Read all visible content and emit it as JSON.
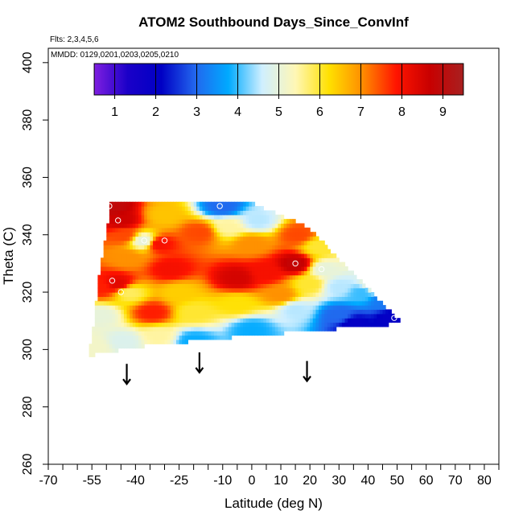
{
  "chart_data": {
    "type": "heatmap",
    "title": "ATOM2 Southbound Days_Since_ConvInf",
    "notes": [
      "Flts: 2,3,4,5,6",
      "MMDD: 0129,0201,0203,0205,0210"
    ],
    "xlabel": "Latitude (deg N)",
    "ylabel": "Theta (C)",
    "xlim": [
      -70,
      85
    ],
    "ylim": [
      260,
      405
    ],
    "xticks": [
      -70,
      -65,
      -60,
      -55,
      -50,
      -45,
      -40,
      -35,
      -30,
      -25,
      -20,
      -15,
      -10,
      -5,
      0,
      5,
      10,
      15,
      20,
      25,
      30,
      35,
      40,
      45,
      50,
      55,
      60,
      65,
      70,
      75,
      80,
      85
    ],
    "xtick_labels": [
      "-70",
      "",
      "",
      "-55",
      "",
      "",
      "-40",
      "",
      "",
      "-25",
      "",
      "",
      "-10",
      "",
      "0",
      "",
      "10",
      "",
      "20",
      "",
      "30",
      "",
      "40",
      "",
      "50",
      "",
      "60",
      "",
      "70",
      "",
      "80",
      ""
    ],
    "yticks": [
      260,
      280,
      300,
      320,
      340,
      360,
      380,
      400
    ],
    "ytick_labels": [
      "260",
      "280",
      "300",
      "320",
      "340",
      "360",
      "380",
      "400"
    ],
    "grid": false,
    "colorbar": {
      "range": [
        0.5,
        9.5
      ],
      "ticks": [
        1,
        2,
        3,
        4,
        5,
        6,
        7,
        8,
        9
      ],
      "tick_labels": [
        "1",
        "2",
        "3",
        "4",
        "5",
        "6",
        "7",
        "8",
        "9"
      ],
      "colors": [
        "#7f1fe0",
        "#1a00c8",
        "#0000c4",
        "#2266ee",
        "#00aaff",
        "#cfefff",
        "#fff7b5",
        "#ffe000",
        "#ff8c00",
        "#ff1400",
        "#c80000",
        "#a82020"
      ],
      "placement": "top-inside"
    },
    "value_range": [
      1,
      9.5
    ],
    "z_nodes": [
      {
        "lat": -48,
        "theta": 350,
        "value": 8.9
      },
      {
        "lat": -45,
        "theta": 345,
        "value": 8.6
      },
      {
        "lat": -44,
        "theta": 340,
        "value": 7.5
      },
      {
        "lat": -43,
        "theta": 332,
        "value": 7.0
      },
      {
        "lat": -46,
        "theta": 323,
        "value": 8.3
      },
      {
        "lat": -52,
        "theta": 322,
        "value": 7.8
      },
      {
        "lat": -52,
        "theta": 312,
        "value": 5.0
      },
      {
        "lat": -54,
        "theta": 301,
        "value": 5.2
      },
      {
        "lat": -44,
        "theta": 303,
        "value": 4.8
      },
      {
        "lat": -42,
        "theta": 320,
        "value": 5.8
      },
      {
        "lat": -37,
        "theta": 338,
        "value": 5.0
      },
      {
        "lat": -32,
        "theta": 337,
        "value": 8.0
      },
      {
        "lat": -30,
        "theta": 347,
        "value": 6.5
      },
      {
        "lat": -28,
        "theta": 328,
        "value": 8.0
      },
      {
        "lat": -25,
        "theta": 320,
        "value": 6.4
      },
      {
        "lat": -34,
        "theta": 313,
        "value": 7.8
      },
      {
        "lat": -32,
        "theta": 305,
        "value": 5.5
      },
      {
        "lat": -20,
        "theta": 313,
        "value": 6.0
      },
      {
        "lat": -20,
        "theta": 303,
        "value": 3.8
      },
      {
        "lat": -18,
        "theta": 341,
        "value": 7.5
      },
      {
        "lat": -10,
        "theta": 350,
        "value": 3.0
      },
      {
        "lat": -8,
        "theta": 343,
        "value": 5.5
      },
      {
        "lat": 0,
        "theta": 337,
        "value": 7.0
      },
      {
        "lat": 2,
        "theta": 345,
        "value": 4.5
      },
      {
        "lat": -5,
        "theta": 325,
        "value": 8.5
      },
      {
        "lat": -5,
        "theta": 316,
        "value": 6.2
      },
      {
        "lat": 0,
        "theta": 307,
        "value": 3.8
      },
      {
        "lat": 5,
        "theta": 327,
        "value": 8.0
      },
      {
        "lat": 15,
        "theta": 330,
        "value": 8.8
      },
      {
        "lat": 16,
        "theta": 340,
        "value": 7.5
      },
      {
        "lat": 20,
        "theta": 323,
        "value": 6.0
      },
      {
        "lat": 10,
        "theta": 319,
        "value": 7.0
      },
      {
        "lat": 23,
        "theta": 336,
        "value": 6.0
      },
      {
        "lat": 25,
        "theta": 328,
        "value": 5.0
      },
      {
        "lat": 30,
        "theta": 322,
        "value": 4.5
      },
      {
        "lat": 15,
        "theta": 314,
        "value": 4.5
      },
      {
        "lat": 30,
        "theta": 312,
        "value": 3.0
      },
      {
        "lat": 38,
        "theta": 320,
        "value": 4.0
      },
      {
        "lat": 45,
        "theta": 317,
        "value": 3.2
      },
      {
        "lat": 48,
        "theta": 311,
        "value": 2.0
      },
      {
        "lat": 35,
        "theta": 309,
        "value": 2.0
      },
      {
        "lat": 42,
        "theta": 322,
        "value": 5.5
      }
    ],
    "sample_points": [
      {
        "lat": -49,
        "theta": 350
      },
      {
        "lat": -46,
        "theta": 345
      },
      {
        "lat": -37,
        "theta": 338
      },
      {
        "lat": -30,
        "theta": 338
      },
      {
        "lat": -48,
        "theta": 324
      },
      {
        "lat": -45,
        "theta": 320
      },
      {
        "lat": -11,
        "theta": 350
      },
      {
        "lat": 15,
        "theta": 330
      },
      {
        "lat": 24,
        "theta": 328
      },
      {
        "lat": 49,
        "theta": 311
      }
    ],
    "arrows": [
      {
        "lat": -43,
        "theta_top": 295,
        "theta_bottom": 288
      },
      {
        "lat": -18,
        "theta_top": 299,
        "theta_bottom": 292
      },
      {
        "lat": 19,
        "theta_top": 296,
        "theta_bottom": 289
      }
    ]
  }
}
